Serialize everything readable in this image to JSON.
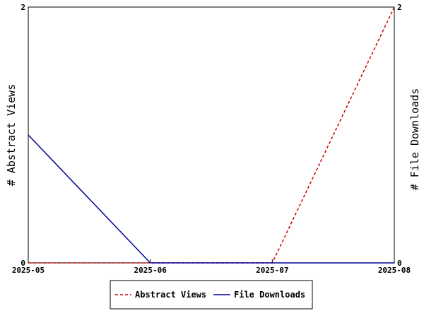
{
  "chart_data": {
    "type": "line",
    "categories": [
      "2025-05",
      "2025-06",
      "2025-07",
      "2025-08"
    ],
    "y_left": {
      "label": "# Abstract Views",
      "range": [
        0,
        2
      ],
      "ticks": [
        "0",
        "2"
      ]
    },
    "y_right": {
      "label": "# File Downloads",
      "range": [
        0,
        2
      ],
      "ticks": [
        "0",
        "2"
      ]
    },
    "series": [
      {
        "name": "Abstract Views",
        "axis": "left",
        "style": "dashed",
        "color": "#cc0000",
        "values": [
          0,
          0,
          0,
          2
        ]
      },
      {
        "name": "File Downloads",
        "axis": "right",
        "style": "solid",
        "color": "#000099",
        "values": [
          1,
          0,
          0,
          0
        ]
      }
    ],
    "grid": false,
    "legend_placement": "bottom-center"
  }
}
